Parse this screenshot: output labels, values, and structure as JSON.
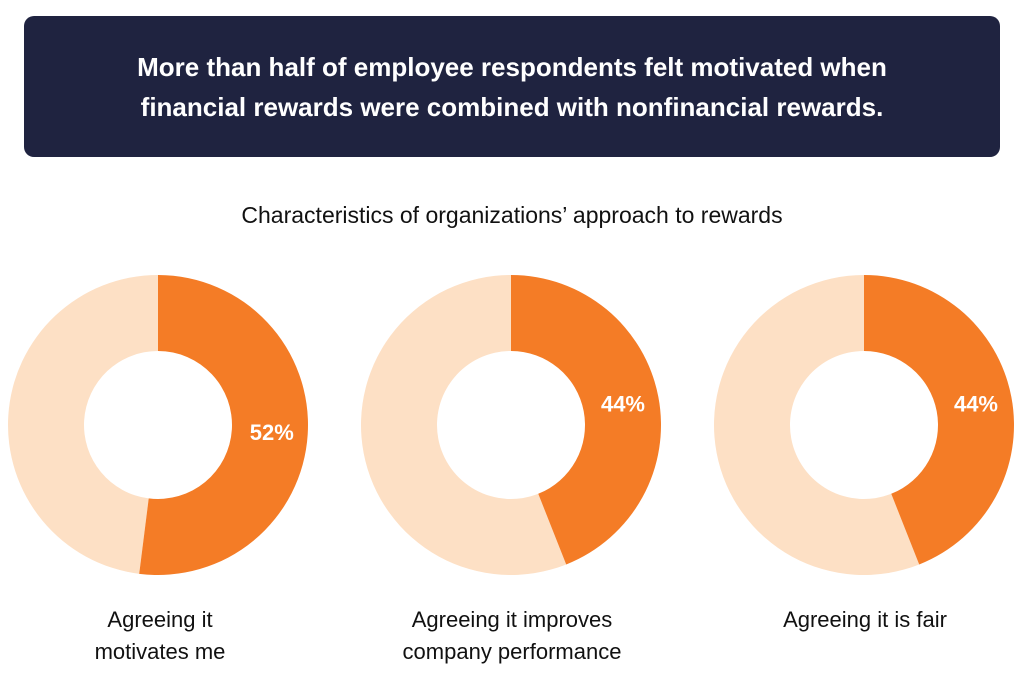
{
  "header": {
    "lines": [
      "More than half of employee respondents felt motivated when",
      "financial rewards were combined with nonfinancial rewards."
    ]
  },
  "chart_data": {
    "type": "pie",
    "title": "Characteristics of organizations’ approach to rewards",
    "colors": {
      "highlight": "#f47c26",
      "remainder": "#fde0c5"
    },
    "series": [
      {
        "value": 52,
        "label": "52%",
        "caption": [
          "Agreeing it",
          "motivates me"
        ]
      },
      {
        "value": 44,
        "label": "44%",
        "caption": [
          "Agreeing it improves",
          "company performance"
        ]
      },
      {
        "value": 44,
        "label": "44%",
        "caption": [
          "Agreeing it is fair"
        ]
      }
    ]
  }
}
